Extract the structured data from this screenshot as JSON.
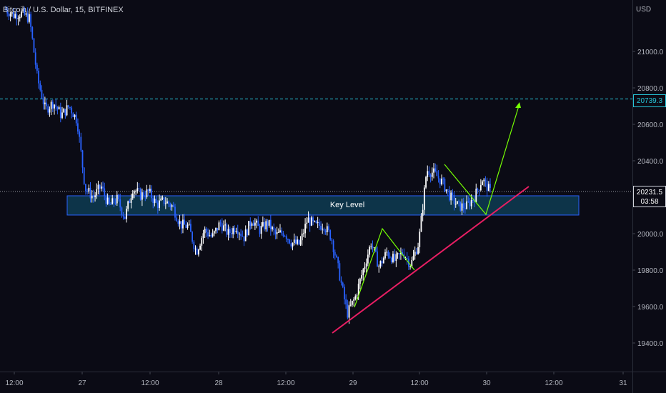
{
  "header": {
    "title": "Bitcoin / U.S. Dollar, 15, BITFINEX",
    "currency": "USD"
  },
  "price_axis": {
    "ticks": [
      "21000.0",
      "20800.0",
      "20600.0",
      "20400.0",
      "20000.0",
      "19800.0",
      "19600.0",
      "19400.0"
    ],
    "target_price": "20739.3",
    "last_price": "20231.5",
    "countdown": "03:58"
  },
  "time_axis": {
    "labels": [
      "12:00",
      "27",
      "12:00",
      "28",
      "12:00",
      "29",
      "12:00",
      "30",
      "12:00",
      "31"
    ]
  },
  "annotations": {
    "key_level_label": "Key Level"
  },
  "colors": {
    "background": "#0b0b15",
    "candle_up": "#ffffff",
    "candle_down": "#2962ff",
    "trendline": "#e91e63",
    "projection": "#76ff03",
    "key_level_fill": "#0e3c52",
    "key_level_border": "#2962ff",
    "target_line": "#26c6da"
  },
  "chart_data": {
    "type": "candlestick",
    "title": "Bitcoin / U.S. Dollar, 15, BITFINEX",
    "ylabel": "USD",
    "ylim": [
      19300,
      21250
    ],
    "target_level": 20739.3,
    "last_price": 20231.5,
    "key_level_zone": [
      20110,
      20200
    ],
    "x_tick_labels": [
      "12:00",
      "27",
      "12:00",
      "28",
      "12:00",
      "29",
      "12:00",
      "30",
      "12:00",
      "31"
    ],
    "path_anchors": [
      21230,
      21200,
      21210,
      21180,
      20850,
      20680,
      20720,
      20650,
      20700,
      20620,
      20250,
      20200,
      20260,
      20150,
      20190,
      20090,
      20250,
      20210,
      20230,
      20160,
      20180,
      20150,
      20050,
      20040,
      19900,
      20020,
      19980,
      20060,
      20000,
      20040,
      19980,
      20080,
      20020,
      20060,
      19990,
      20010,
      19950,
      19940,
      20080,
      20040,
      20050,
      19980,
      19780,
      19560,
      19650,
      19800,
      19950,
      19820,
      19900,
      19850,
      19900,
      19830,
      19950,
      20350,
      20330,
      20280,
      20200,
      20150,
      20150,
      20200,
      20300,
      20230
    ]
  }
}
